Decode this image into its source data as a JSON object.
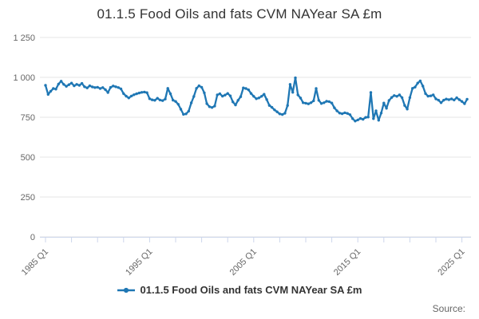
{
  "title": "01.1.5 Food Oils and fats CVM NAYear SA £m",
  "legend": {
    "label": "01.1.5 Food Oils and fats CVM NAYear SA £m"
  },
  "source_label": "Source:",
  "chart_data": {
    "type": "line",
    "title": "01.1.5 Food Oils and fats CVM NAYear SA £m",
    "x_interval": "quarter",
    "x_start": "1985 Q1",
    "x_end": "2025 Q3",
    "x_tick_labels": [
      "1985 Q1",
      "1995 Q1",
      "2005 Q1",
      "2015 Q1",
      "2025 Q1"
    ],
    "x_minor_tick_every_quarters": 10,
    "x_label_every_quarters": 40,
    "ylim": [
      0,
      1250
    ],
    "y_ticks": [
      0,
      250,
      500,
      750,
      1000,
      1250
    ],
    "y_tick_labels": [
      "0",
      "250",
      "500",
      "750",
      "1 000",
      "1 250"
    ],
    "grid": true,
    "legend_position": "bottom",
    "colors": {
      "series": "#1f77b4",
      "grid": "#e6e6e6",
      "axis": "#ccd6eb",
      "axis_labels": "#666666",
      "title": "#333333",
      "source": "#666666"
    },
    "series": [
      {
        "name": "01.1.5 Food Oils and fats CVM NAYear SA £m",
        "color": "#1f77b4",
        "values": [
          950,
          893,
          913,
          930,
          926,
          958,
          976,
          956,
          944,
          954,
          964,
          947,
          956,
          950,
          962,
          941,
          934,
          947,
          940,
          936,
          938,
          930,
          936,
          923,
          905,
          937,
          946,
          941,
          936,
          928,
          898,
          882,
          871,
          883,
          891,
          897,
          902,
          906,
          908,
          904,
          866,
          859,
          856,
          869,
          858,
          854,
          864,
          931,
          897,
          857,
          849,
          831,
          800,
          768,
          771,
          788,
          840,
          880,
          931,
          947,
          938,
          903,
          835,
          816,
          811,
          820,
          890,
          897,
          882,
          889,
          899,
          884,
          846,
          827,
          856,
          879,
          934,
          930,
          922,
          899,
          881,
          866,
          871,
          881,
          894,
          861,
          824,
          812,
          796,
          784,
          771,
          767,
          775,
          824,
          956,
          906,
          997,
          890,
          870,
          841,
          838,
          834,
          841,
          853,
          930,
          856,
          836,
          841,
          850,
          848,
          839,
          809,
          790,
          776,
          772,
          778,
          774,
          766,
          741,
          726,
          733,
          742,
          737,
          749,
          751,
          905,
          741,
          790,
          731,
          776,
          839,
          806,
          855,
          874,
          886,
          881,
          890,
          873,
          824,
          801,
          873,
          931,
          939,
          964,
          978,
          945,
          898,
          882,
          884,
          890,
          865,
          857,
          841,
          857,
          864,
          860,
          865,
          858,
          872,
          860,
          849,
          835,
          863
        ]
      }
    ]
  }
}
